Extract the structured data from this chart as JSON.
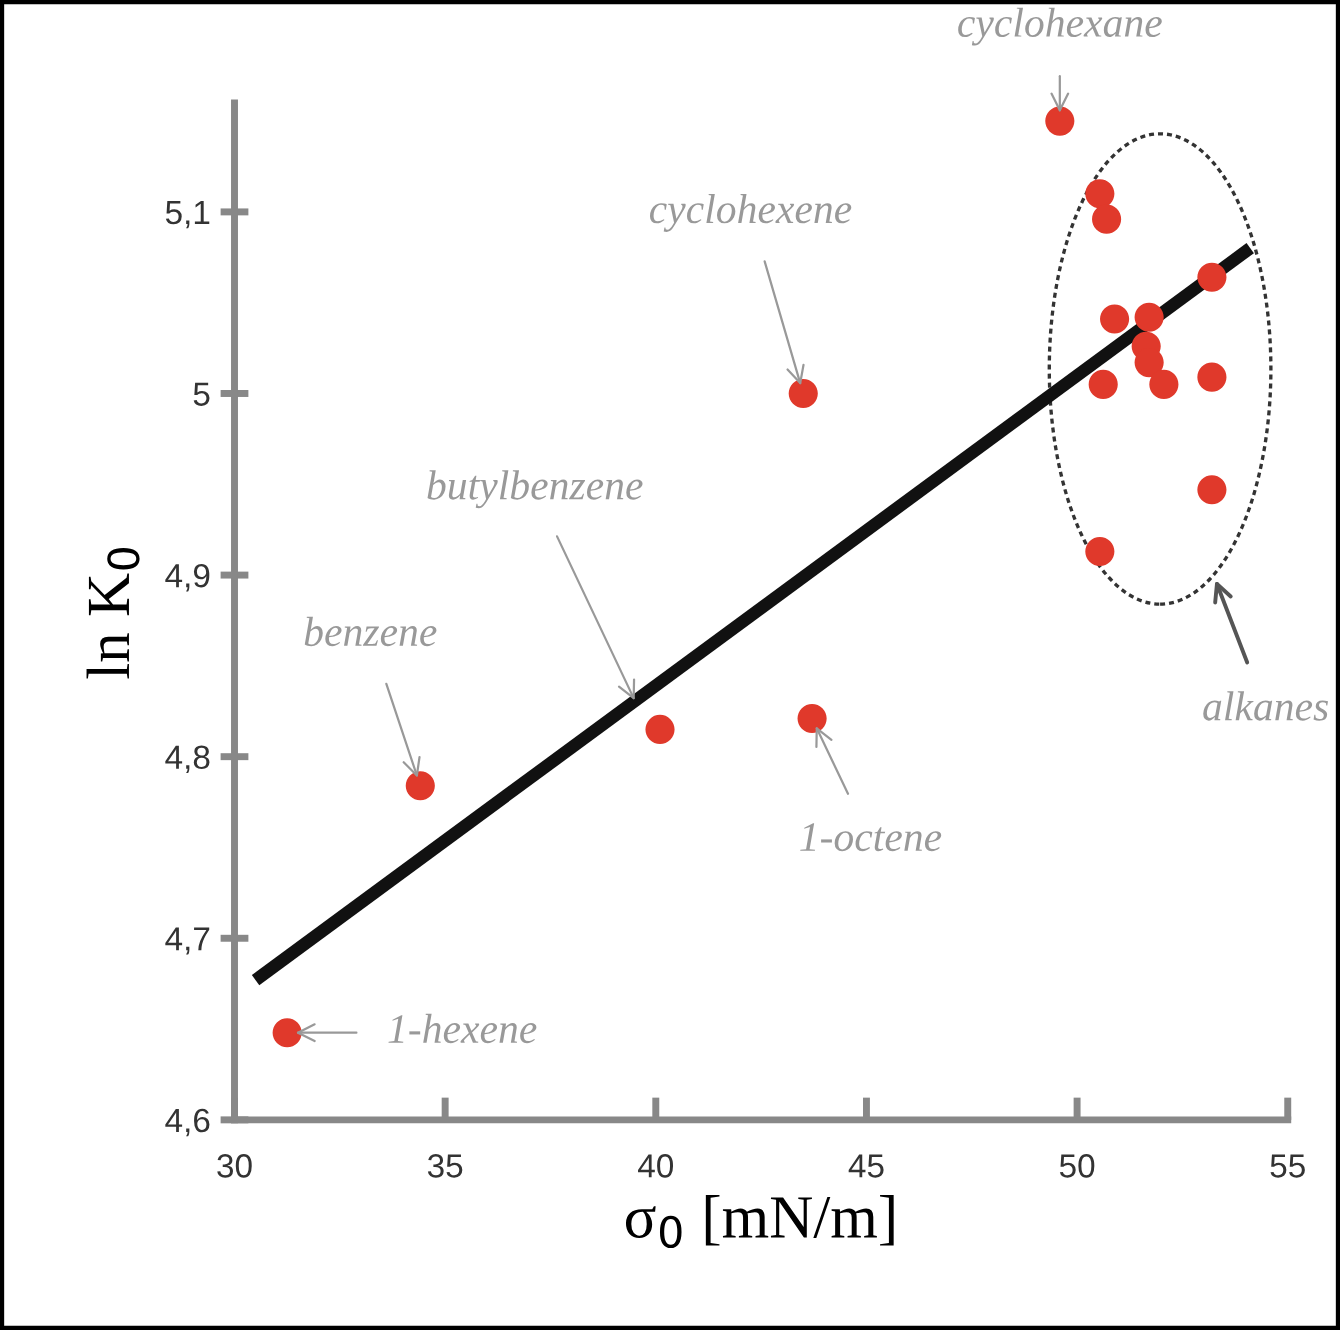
{
  "chart_data": {
    "type": "scatter",
    "xlabel": "σ$_{0}$ [mN/m]",
    "ylabel": "ln K$_{0}$",
    "xlim": [
      30,
      55
    ],
    "xticks": [
      30,
      35,
      40,
      45,
      50,
      55
    ],
    "ylim": [
      4.6,
      5.16
    ],
    "yticks": [
      {
        "value": 4.6,
        "label": "4,6"
      },
      {
        "value": 4.7,
        "label": "4,7"
      },
      {
        "value": 4.8,
        "label": "4,8"
      },
      {
        "value": 4.9,
        "label": "4,9"
      },
      {
        "value": 5.0,
        "label": "5"
      },
      {
        "value": 5.1,
        "label": "5,1"
      }
    ],
    "grid": false,
    "marker": "circle",
    "series": [
      {
        "color": "#e0392b",
        "x": [
          31.25,
          34.41,
          40.1,
          43.71,
          43.5,
          49.59
        ],
        "values": [
          4.648,
          4.784,
          4.815,
          4.821,
          5.0,
          5.15
        ]
      },
      {
        "color": "#e0392b",
        "x": [
          50.54,
          50.7,
          53.2,
          50.89,
          51.71,
          51.64,
          51.71,
          52.06,
          50.62,
          53.2,
          53.2,
          50.54
        ],
        "values": [
          5.11,
          5.096,
          5.064,
          5.041,
          5.042,
          5.026,
          5.017,
          5.005,
          5.005,
          5.009,
          4.947,
          4.913
        ]
      },
      {
        "type": "line",
        "color": "#111111",
        "x": [
          30.62,
          53.99
        ],
        "values": [
          4.679,
          5.078
        ],
        "line_style": "solid",
        "marker": "none"
      }
    ],
    "annotations": [
      {
        "text": "cyclohexane",
        "x": 49.59,
        "y": 5.15
      },
      {
        "text": "cyclohexene",
        "x": 43.5,
        "y": 5.0
      },
      {
        "text": "butylbenzene",
        "x": 39.5,
        "y": 4.831
      },
      {
        "text": "benzene",
        "x": 34.41,
        "y": 4.784
      },
      {
        "text": "1-octene",
        "x": 43.71,
        "y": 4.821
      },
      {
        "text": "1-hexene",
        "x": 31.25,
        "y": 4.648
      },
      "alkanes"
    ]
  }
}
